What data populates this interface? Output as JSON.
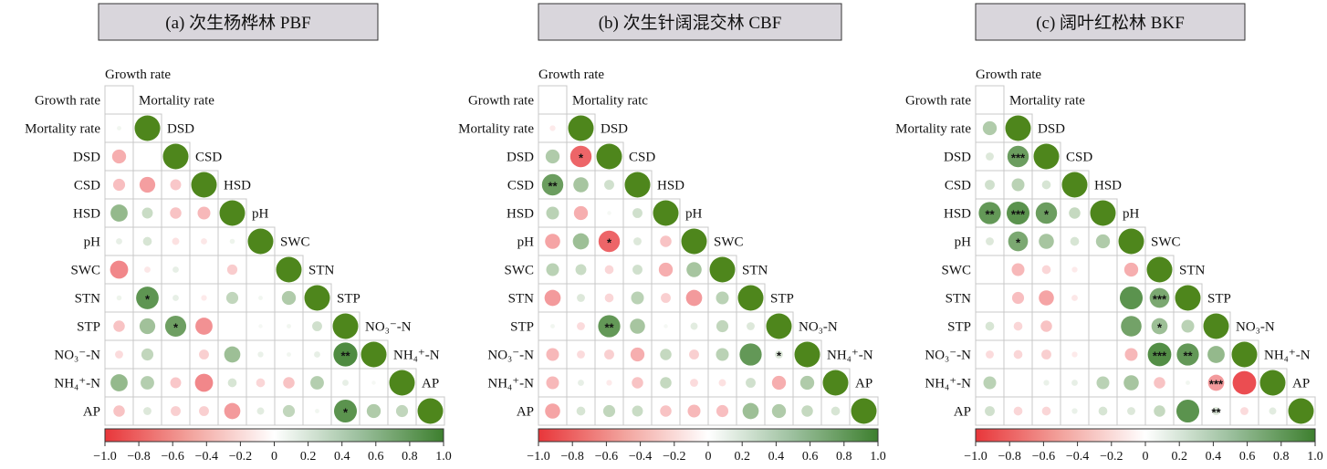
{
  "chart_data": [
    {
      "type": "heatmap",
      "title": "(a) 次生杨桦林 PBF",
      "row_labels": [
        "Growth rate",
        "Mortality rate",
        "DSD",
        "CSD",
        "HSD",
        "pH",
        "SWC",
        "STN",
        "STP",
        "NO₃⁻-N",
        "NH₄⁺-N",
        "AP"
      ],
      "diag_labels": [
        "Mortality rate",
        "DSD",
        "CSD",
        "HSD",
        "pH",
        "SWC",
        "STN",
        "STP",
        "NO₃⁻-N",
        "NH₄⁺-N",
        "AP"
      ],
      "top_label": "Growth rate",
      "colorbar": {
        "range": [
          -1,
          1
        ],
        "ticks": [
          "−1.0",
          "−0.8",
          "−0.6",
          "−0.4",
          "−0.2",
          "0",
          "0.2",
          "0.4",
          "0.6",
          "0.8",
          "1.0"
        ]
      },
      "cells": [
        [
          0.0
        ],
        [
          0.03,
          1.0
        ],
        [
          -0.3,
          0.0,
          1.0
        ],
        [
          -0.22,
          -0.38,
          -0.18,
          1.0
        ],
        [
          0.45,
          0.18,
          -0.2,
          -0.25,
          1.0
        ],
        [
          0.06,
          0.12,
          -0.08,
          -0.06,
          0.04,
          1.0
        ],
        [
          -0.5,
          -0.06,
          0.06,
          0.0,
          -0.16,
          0.0,
          1.0
        ],
        [
          0.04,
          0.78,
          0.06,
          -0.05,
          0.22,
          0.03,
          0.3,
          1.0
        ],
        [
          -0.2,
          0.38,
          0.68,
          -0.45,
          0.0,
          0.02,
          0.03,
          0.15,
          1.0
        ],
        [
          -0.1,
          0.22,
          0.0,
          -0.15,
          0.4,
          0.05,
          0.03,
          0.06,
          0.88,
          1.0
        ],
        [
          0.45,
          0.28,
          -0.18,
          -0.5,
          0.12,
          -0.12,
          -0.2,
          0.28,
          0.06,
          0.02,
          1.0
        ],
        [
          -0.2,
          0.1,
          -0.15,
          -0.15,
          -0.4,
          0.08,
          0.22,
          0.03,
          0.8,
          0.3,
          0.22,
          1.0
        ]
      ],
      "stars": [
        {
          "r": 7,
          "c": 1,
          "t": "*"
        },
        {
          "r": 8,
          "c": 2,
          "t": "*"
        },
        {
          "r": 9,
          "c": 8,
          "t": "**"
        },
        {
          "r": 11,
          "c": 8,
          "t": "*"
        }
      ]
    },
    {
      "type": "heatmap",
      "title": "(b) 次生针阔混交林 CBF",
      "row_labels": [
        "Growth rate",
        "Mortality rate",
        "DSD",
        "CSD",
        "HSD",
        "pH",
        "SWC",
        "STN",
        "STP",
        "NO₃⁻-N",
        "NH₄⁺-N",
        "AP"
      ],
      "diag_labels": [
        "Mortality ratc",
        "DSD",
        "CSD",
        "HSD",
        "pH",
        "SWC",
        "STN",
        "STP",
        "NO₃-N",
        "NH₄⁺-N",
        "AP"
      ],
      "top_label": "Growth rate",
      "colorbar": {
        "range": [
          -1,
          1
        ],
        "ticks": [
          "−1.0",
          "−0.8",
          "−0.6",
          "−0.4",
          "−0.2",
          "0",
          "0.2",
          "0.4",
          "0.6",
          "0.8",
          "1.0"
        ]
      },
      "cells": [
        [
          0.0
        ],
        [
          -0.05,
          1.0
        ],
        [
          0.3,
          -0.7,
          1.0
        ],
        [
          0.7,
          0.35,
          0.15,
          1.0
        ],
        [
          0.25,
          -0.3,
          0.02,
          0.15,
          1.0
        ],
        [
          -0.35,
          0.4,
          -0.7,
          0.1,
          -0.2,
          1.0
        ],
        [
          0.25,
          0.18,
          -0.12,
          0.15,
          -0.3,
          0.35,
          1.0
        ],
        [
          -0.4,
          0.1,
          -0.12,
          0.25,
          -0.15,
          -0.4,
          0.25,
          1.0
        ],
        [
          0.03,
          -0.1,
          0.75,
          0.35,
          0.02,
          0.08,
          0.22,
          0.1,
          1.0
        ],
        [
          -0.25,
          -0.1,
          -0.15,
          -0.3,
          0.2,
          -0.15,
          0.25,
          0.75,
          0.1,
          1.0
        ],
        [
          -0.25,
          0.06,
          -0.05,
          -0.2,
          0.2,
          -0.1,
          -0.08,
          0.15,
          -0.3,
          0.3,
          1.0
        ],
        [
          -0.35,
          0.12,
          0.22,
          0.18,
          -0.2,
          -0.25,
          -0.22,
          0.4,
          0.3,
          0.2,
          0.12,
          1.0
        ]
      ],
      "stars": [
        {
          "r": 2,
          "c": 1,
          "t": "*"
        },
        {
          "r": 3,
          "c": 0,
          "t": "**"
        },
        {
          "r": 5,
          "c": 2,
          "t": "*"
        },
        {
          "r": 8,
          "c": 2,
          "t": "**"
        },
        {
          "r": 9,
          "c": 8,
          "t": "*"
        }
      ]
    },
    {
      "type": "heatmap",
      "title": "(c) 阔叶红松林 BKF",
      "row_labels": [
        "Growth rate",
        "Mortality rate",
        "DSD",
        "CSD",
        "HSD",
        "pH",
        "SWC",
        "STN",
        "STP",
        "NO₃⁻-N",
        "NH₄⁺-N",
        "AP"
      ],
      "diag_labels": [
        "Mortality rate",
        "DSD",
        "CSD",
        "HSD",
        "pH",
        "SWC",
        "STN",
        "STP",
        "NO₃-N",
        "NH₄⁺-N",
        "AP"
      ],
      "top_label": "Growth rate",
      "colorbar": {
        "range": [
          -1,
          1
        ],
        "ticks": [
          "−1.0",
          "−0.8",
          "−0.6",
          "−0.4",
          "−0.2",
          "0",
          "0.2",
          "0.4",
          "0.6",
          "0.8",
          "1.0"
        ]
      },
      "cells": [
        [
          0.0
        ],
        [
          0.3,
          1.0
        ],
        [
          0.1,
          0.7,
          1.0
        ],
        [
          0.15,
          0.25,
          0.12,
          1.0
        ],
        [
          0.75,
          0.8,
          0.7,
          0.2,
          1.0
        ],
        [
          0.1,
          0.6,
          0.35,
          0.12,
          0.3,
          1.0
        ],
        [
          0.0,
          -0.25,
          -0.12,
          -0.05,
          0.0,
          -0.3,
          1.0
        ],
        [
          0.0,
          -0.22,
          -0.35,
          -0.06,
          0.0,
          0.8,
          0.6,
          1.0
        ],
        [
          0.12,
          -0.12,
          -0.2,
          0.0,
          0.0,
          0.65,
          0.4,
          0.25,
          1.0
        ],
        [
          -0.1,
          -0.12,
          -0.15,
          -0.05,
          0.0,
          -0.25,
          0.85,
          0.75,
          0.45,
          1.0
        ],
        [
          0.25,
          0.0,
          0.05,
          0.06,
          0.25,
          0.35,
          -0.2,
          0.03,
          -0.4,
          -0.85,
          1.0
        ],
        [
          0.15,
          -0.12,
          -0.12,
          0.05,
          0.12,
          0.1,
          0.2,
          0.8,
          0.1,
          -0.1,
          0.08,
          1.0
        ]
      ],
      "stars": [
        {
          "r": 2,
          "c": 1,
          "t": "***"
        },
        {
          "r": 4,
          "c": 0,
          "t": "**"
        },
        {
          "r": 4,
          "c": 1,
          "t": "***"
        },
        {
          "r": 4,
          "c": 2,
          "t": "*"
        },
        {
          "r": 5,
          "c": 1,
          "t": "*"
        },
        {
          "r": 7,
          "c": 6,
          "t": "***"
        },
        {
          "r": 8,
          "c": 6,
          "t": "*"
        },
        {
          "r": 9,
          "c": 6,
          "t": "***"
        },
        {
          "r": 9,
          "c": 7,
          "t": "**"
        },
        {
          "r": 10,
          "c": 8,
          "t": "***"
        },
        {
          "r": 11,
          "c": 8,
          "t": "**"
        }
      ]
    }
  ]
}
